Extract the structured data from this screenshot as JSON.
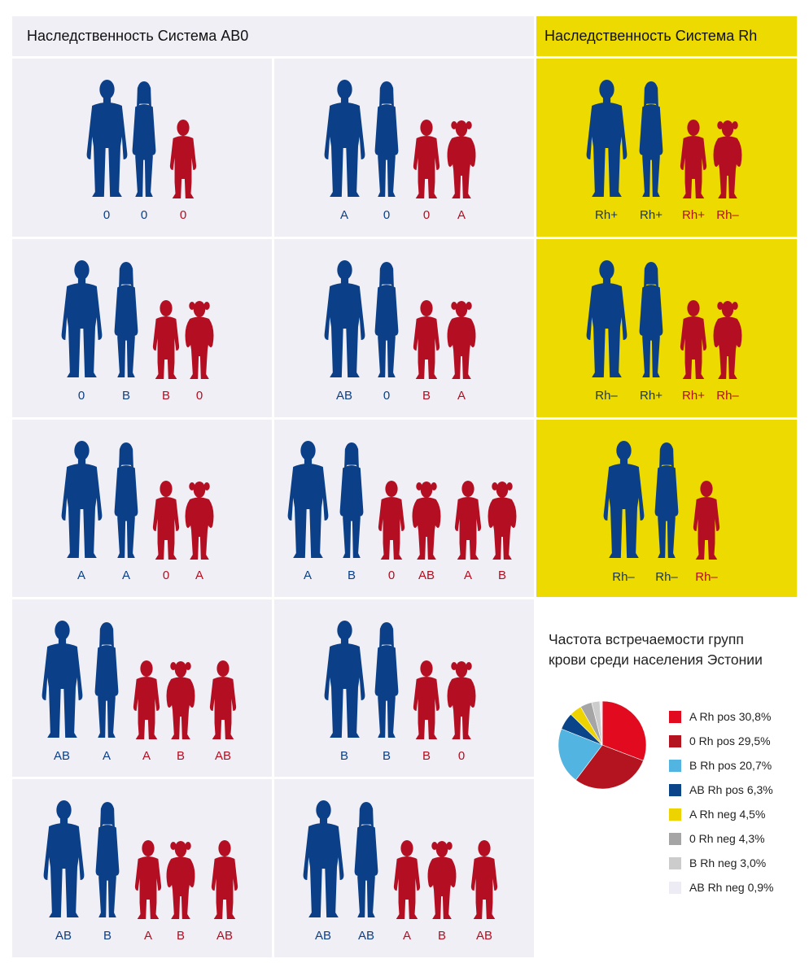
{
  "headers": {
    "abo": "Наследственность Система AB0",
    "rh": "Наследственность Система Rh"
  },
  "colors": {
    "parent": "#0b4088",
    "child": "#b40e22",
    "yellow": "#ecda00",
    "grey": "#f0eff6"
  },
  "abo_cells": [
    {
      "figures": [
        "man",
        "woman",
        "boy"
      ],
      "labels": [
        "0",
        "0",
        "0"
      ]
    },
    {
      "figures": [
        "man",
        "woman",
        "boy",
        "girl"
      ],
      "labels": [
        "A",
        "0",
        "0",
        "A"
      ]
    },
    {
      "figures": [
        "man",
        "woman",
        "boy",
        "girl"
      ],
      "labels": [
        "0",
        "B",
        "B",
        "0"
      ]
    },
    {
      "figures": [
        "man",
        "woman",
        "boy",
        "girl"
      ],
      "labels": [
        "AB",
        "0",
        "B",
        "A"
      ]
    },
    {
      "figures": [
        "man",
        "woman",
        "boy",
        "girl"
      ],
      "labels": [
        "A",
        "A",
        "0",
        "A"
      ]
    },
    {
      "figures": [
        "man",
        "woman",
        "boy",
        "girl",
        "boy",
        "girl"
      ],
      "labels": [
        "A",
        "B",
        "0",
        "AB",
        "A",
        "B"
      ]
    },
    {
      "figures": [
        "man",
        "woman",
        "boy",
        "girl",
        "boy"
      ],
      "labels": [
        "AB",
        "A",
        "A",
        "B",
        "AB"
      ]
    },
    {
      "figures": [
        "man",
        "woman",
        "boy",
        "girl"
      ],
      "labels": [
        "B",
        "B",
        "B",
        "0"
      ]
    },
    {
      "figures": [
        "man",
        "woman",
        "boy",
        "girl",
        "boy"
      ],
      "labels": [
        "AB",
        "B",
        "A",
        "B",
        "AB"
      ]
    },
    {
      "figures": [
        "man",
        "woman",
        "boy",
        "girl",
        "boy"
      ],
      "labels": [
        "AB",
        "AB",
        "A",
        "B",
        "AB"
      ]
    }
  ],
  "rh_cells": [
    {
      "figures": [
        "man",
        "woman",
        "boy",
        "girl"
      ],
      "labels": [
        "Rh+",
        "Rh+",
        "Rh+",
        "Rh–"
      ]
    },
    {
      "figures": [
        "man",
        "woman",
        "boy",
        "girl"
      ],
      "labels": [
        "Rh–",
        "Rh+",
        "Rh+",
        "Rh–"
      ]
    },
    {
      "figures": [
        "man",
        "woman",
        "boy"
      ],
      "labels": [
        "Rh–",
        "Rh–",
        "Rh–"
      ]
    }
  ],
  "chart_title_line1": "Частота встречаемости групп",
  "chart_title_line2": "крови среди населения Эстонии",
  "legend": [
    "A Rh pos 30,8%",
    "0 Rh pos 29,5%",
    "B Rh pos 20,7%",
    "AB Rh pos 6,3%",
    "A Rh neg 4,5%",
    "0 Rh neg 4,3%",
    "B Rh neg 3,0%",
    "AB Rh neg 0,9%"
  ],
  "chart_data": {
    "type": "pie",
    "title": "Частота встречаемости групп крови среди населения Эстонии",
    "categories": [
      "A Rh pos",
      "0 Rh pos",
      "B Rh pos",
      "AB Rh pos",
      "A Rh neg",
      "0 Rh neg",
      "B Rh neg",
      "AB Rh neg"
    ],
    "values": [
      30.8,
      29.5,
      20.7,
      6.3,
      4.5,
      4.3,
      3.0,
      0.9
    ],
    "colors": [
      "#e10a1f",
      "#b31420",
      "#52b4e0",
      "#0a4589",
      "#edd400",
      "#a5a5a5",
      "#cccccc",
      "#edecf4"
    ],
    "legend_position": "right"
  }
}
